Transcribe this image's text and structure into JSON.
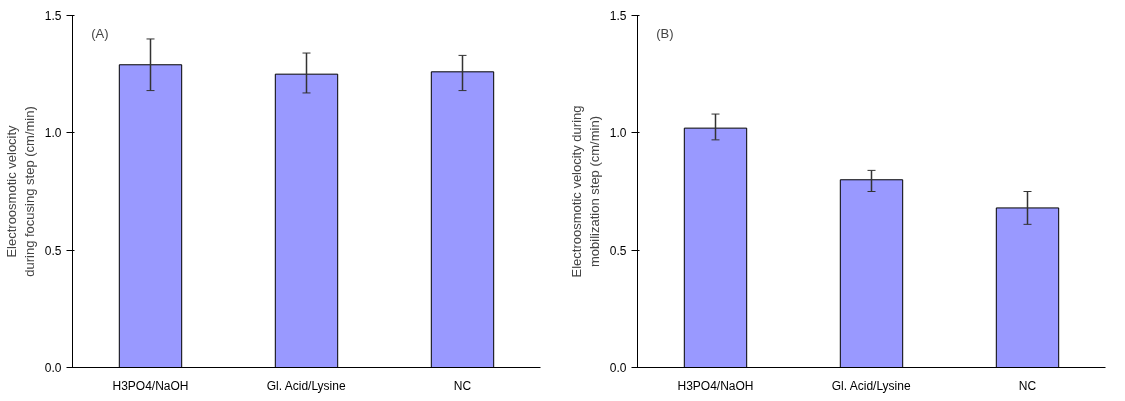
{
  "chart_data": [
    {
      "type": "bar",
      "ylabel": "Electroosmotic velocity during focusing step (cm/min)",
      "annotations": [
        "(A)"
      ],
      "categories": [
        "H3PO4/NaOH",
        "Gl. Acid/Lysine",
        "NC"
      ],
      "series": [
        {
          "color": "#9999ff",
          "values": [
            1.29,
            1.25,
            1.26
          ],
          "errors": [
            [
              1.18,
              1.4
            ],
            [
              1.17,
              1.34
            ],
            [
              1.18,
              1.33
            ]
          ]
        }
      ],
      "ylim": [
        0,
        1.5
      ],
      "yticks": [
        {
          "value": 0,
          "label": "0.0"
        },
        {
          "value": 0.5,
          "label": "0.5"
        },
        {
          "value": 1,
          "label": "1.0"
        },
        {
          "value": 1.5,
          "label": "1.5"
        }
      ],
      "grid": false
    },
    {
      "type": "bar",
      "ylabel": "Electroosmotic velocity during mobilization step (cm/min)",
      "annotations": [
        "(B)"
      ],
      "categories": [
        "H3PO4/NaOH",
        "Gl. Acid/Lysine",
        "NC"
      ],
      "series": [
        {
          "color": "#9999ff",
          "values": [
            1.02,
            0.8,
            0.68
          ],
          "errors": [
            [
              0.97,
              1.08
            ],
            [
              0.75,
              0.84
            ],
            [
              0.61,
              0.75
            ]
          ]
        }
      ],
      "ylim": [
        0,
        1.5
      ],
      "yticks": [
        {
          "value": 0,
          "label": "0.0"
        },
        {
          "value": 0.5,
          "label": "0.5"
        },
        {
          "value": 1,
          "label": "1.0"
        },
        {
          "value": 1.5,
          "label": "1.5"
        }
      ],
      "grid": false
    }
  ]
}
